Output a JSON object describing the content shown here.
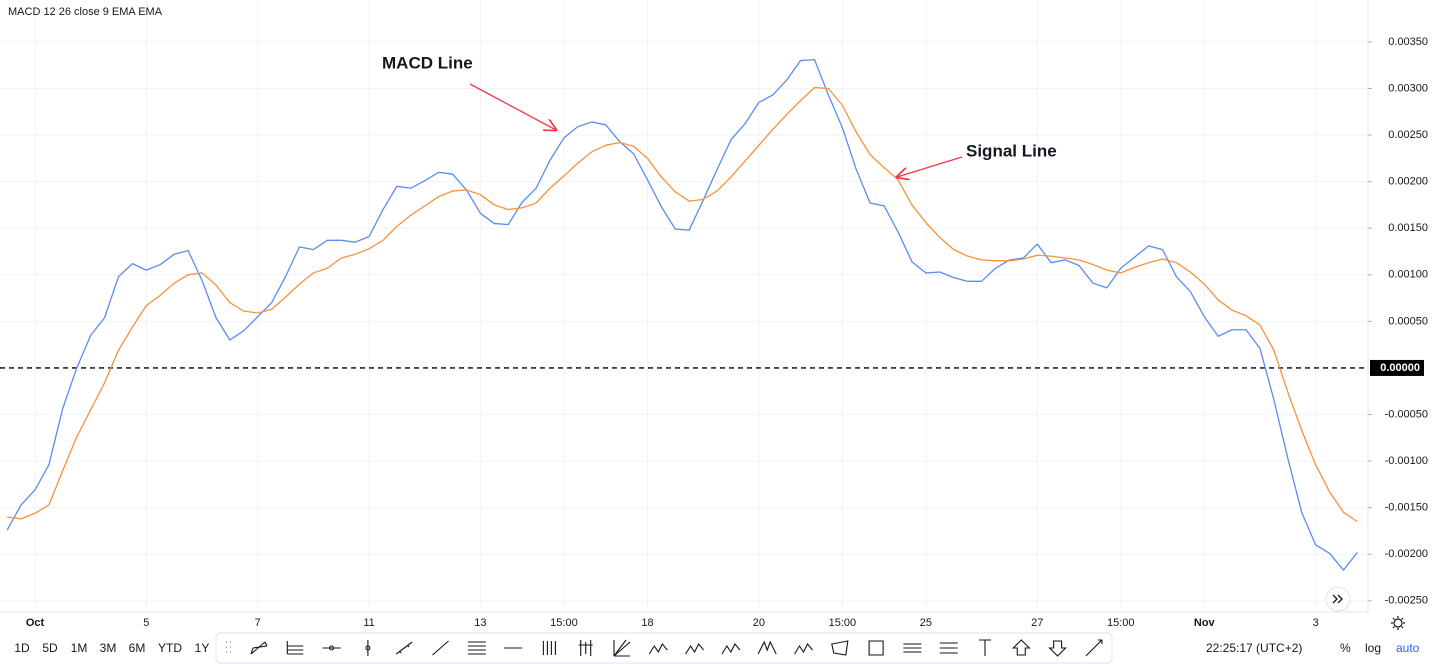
{
  "chart_data": {
    "type": "line",
    "title": "MACD 12 26 close 9 EMA EMA",
    "categories": [
      null,
      null,
      "Oct",
      null,
      null,
      null,
      null,
      null,
      null,
      null,
      "5",
      null,
      null,
      null,
      null,
      null,
      null,
      null,
      "7",
      null,
      null,
      null,
      null,
      null,
      null,
      null,
      "11",
      null,
      null,
      null,
      null,
      null,
      null,
      null,
      "13",
      null,
      null,
      null,
      null,
      null,
      "15:00",
      null,
      null,
      null,
      null,
      null,
      "18",
      null,
      null,
      null,
      null,
      null,
      null,
      null,
      "20",
      null,
      null,
      null,
      null,
      null,
      "15:00",
      null,
      null,
      null,
      null,
      null,
      "25",
      null,
      null,
      null,
      null,
      null,
      null,
      null,
      "27",
      null,
      null,
      null,
      null,
      null,
      "15:00",
      null,
      null,
      null,
      null,
      null,
      "Nov",
      null,
      null,
      null,
      null,
      null,
      null,
      null,
      "3",
      null,
      null,
      null
    ],
    "series": [
      {
        "name": "MACD Line",
        "color": "#5b8def",
        "values": [
          -0.00174,
          -0.00147,
          -0.00131,
          -0.00104,
          -0.00043,
          0,
          0.00035,
          0.00054,
          0.00098,
          0.00112,
          0.00105,
          0.00111,
          0.00122,
          0.00126,
          0.00094,
          0.00054,
          0.0003,
          0.0004,
          0.00055,
          0.0007,
          0.00098,
          0.0013,
          0.00127,
          0.00137,
          0.00137,
          0.00135,
          0.00141,
          0.0017,
          0.00195,
          0.00193,
          0.00201,
          0.0021,
          0.00208,
          0.00191,
          0.00166,
          0.00155,
          0.00154,
          0.00178,
          0.00193,
          0.00223,
          0.00247,
          0.00259,
          0.00264,
          0.00261,
          0.00243,
          0.0023,
          0.00202,
          0.00173,
          0.00149,
          0.00148,
          0.0018,
          0.00213,
          0.00245,
          0.00262,
          0.00285,
          0.00293,
          0.00309,
          0.0033,
          0.00331,
          0.00293,
          0.00258,
          0.00213,
          0.00177,
          0.00174,
          0.00146,
          0.00114,
          0.00102,
          0.00103,
          0.00097,
          0.00093,
          0.00093,
          0.00107,
          0.00116,
          0.00118,
          0.00133,
          0.00113,
          0.00116,
          0.0011,
          0.00091,
          0.00086,
          0.00107,
          0.00119,
          0.00131,
          0.00127,
          0.00098,
          0.00082,
          0.00055,
          0.00034,
          0.00041,
          0.00041,
          0.00021,
          -0.00034,
          -0.00097,
          -0.00155,
          -0.0019,
          -0.00199,
          -0.00217,
          -0.00198
        ]
      },
      {
        "name": "Signal Line",
        "color": "#f7923a",
        "values": [
          -0.0016,
          -0.00162,
          -0.00156,
          -0.00147,
          -0.0011,
          -0.00074,
          -0.00045,
          -0.00016,
          0.00019,
          0.00044,
          0.00067,
          0.00078,
          0.00091,
          0.001,
          0.00102,
          0.00089,
          0.0007,
          0.00061,
          0.00059,
          0.00063,
          0.00076,
          0.0009,
          0.00102,
          0.00107,
          0.00118,
          0.00122,
          0.00128,
          0.00137,
          0.00152,
          0.00164,
          0.00174,
          0.00184,
          0.0019,
          0.00191,
          0.00186,
          0.00175,
          0.0017,
          0.00172,
          0.00177,
          0.00193,
          0.00206,
          0.0022,
          0.00232,
          0.00239,
          0.00242,
          0.00238,
          0.00225,
          0.00205,
          0.00189,
          0.00179,
          0.00181,
          0.0019,
          0.00205,
          0.00222,
          0.00239,
          0.00256,
          0.00272,
          0.00287,
          0.00301,
          0.003,
          0.00282,
          0.00253,
          0.00229,
          0.00215,
          0.00202,
          0.00175,
          0.00156,
          0.0014,
          0.00127,
          0.0012,
          0.00116,
          0.00115,
          0.00115,
          0.00117,
          0.00121,
          0.0012,
          0.00118,
          0.00116,
          0.00111,
          0.00105,
          0.00102,
          0.00108,
          0.00113,
          0.00117,
          0.00113,
          0.00103,
          0.0009,
          0.00073,
          0.00062,
          0.00056,
          0.00046,
          0.00019,
          -0.00026,
          -0.00067,
          -0.00104,
          -0.00133,
          -0.00155,
          -0.00165
        ]
      }
    ],
    "ylim": [
      -0.00262,
      0.00395
    ],
    "yticks": [
      {
        "value": 0.0035,
        "label": "0.00350"
      },
      {
        "value": 0.003,
        "label": "0.00300"
      },
      {
        "value": 0.0025,
        "label": "0.00250"
      },
      {
        "value": 0.002,
        "label": "0.00200"
      },
      {
        "value": 0.0015,
        "label": "0.00150"
      },
      {
        "value": 0.001,
        "label": "0.00100"
      },
      {
        "value": 0.0005,
        "label": "0.00050"
      },
      {
        "value": -0.0005,
        "label": "-0.00050"
      },
      {
        "value": -0.001,
        "label": "-0.00100"
      },
      {
        "value": -0.0015,
        "label": "-0.00150"
      },
      {
        "value": -0.002,
        "label": "-0.00200"
      },
      {
        "value": -0.0025,
        "label": "-0.00250"
      }
    ],
    "hline": {
      "value": 0,
      "label": "0.00000",
      "color": "#000000"
    },
    "grid": true,
    "annotations": [
      {
        "text": "MACD Line",
        "color": "#3d6ef0"
      },
      {
        "text": "Signal Line",
        "color": "#f7a031"
      }
    ],
    "range_buttons": [
      "1D",
      "5D",
      "1M",
      "3M",
      "6M",
      "YTD",
      "1Y"
    ],
    "clock": "22:25:17 (UTC+2)",
    "scale_buttons": [
      "%",
      "log",
      "auto"
    ]
  }
}
